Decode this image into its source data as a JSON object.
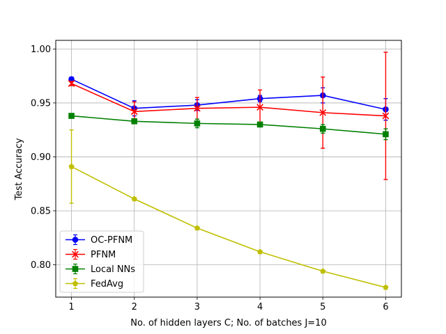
{
  "chart_data": {
    "type": "line",
    "xlabel": "No. of hidden layers C; No. of batches J=10",
    "ylabel": "Test Accuracy",
    "x": [
      1,
      2,
      3,
      4,
      5,
      6
    ],
    "xlim": [
      0.75,
      6.25
    ],
    "ylim": [
      0.77,
      1.008
    ],
    "xticks": [
      1,
      2,
      3,
      4,
      5,
      6
    ],
    "xtick_labels": [
      "1",
      "2",
      "3",
      "4",
      "5",
      "6"
    ],
    "yticks": [
      0.8,
      0.85,
      0.9,
      0.95,
      1.0
    ],
    "ytick_labels": [
      "0.80",
      "0.85",
      "0.90",
      "0.95",
      "1.00"
    ],
    "grid": true,
    "legend_position": "lower-left",
    "series": [
      {
        "name": "OC-PFNM",
        "color": "#0000ff",
        "marker": "circle",
        "values": [
          0.972,
          0.945,
          0.948,
          0.954,
          0.957,
          0.944
        ],
        "errors": [
          0.002,
          0.007,
          0.005,
          0.003,
          0.007,
          0.01
        ]
      },
      {
        "name": "PFNM",
        "color": "#ff0000",
        "marker": "x",
        "values": [
          0.968,
          0.942,
          0.945,
          0.946,
          0.941,
          0.938
        ],
        "errors": [
          0.002,
          0.009,
          0.01,
          0.016,
          0.033,
          0.059
        ]
      },
      {
        "name": "Local NNs",
        "color": "#008000",
        "marker": "square",
        "values": [
          0.938,
          0.933,
          0.931,
          0.93,
          0.926,
          0.921
        ],
        "errors": [
          0.001,
          0.002,
          0.004,
          0.002,
          0.004,
          0.005
        ]
      },
      {
        "name": "FedAvg",
        "color": "#bfbf00",
        "marker": "pentagon",
        "values": [
          0.891,
          0.861,
          0.834,
          0.812,
          0.794,
          0.779
        ],
        "errors": [
          0.034,
          0.001,
          0.001,
          0.001,
          0.001,
          0.001
        ]
      }
    ]
  }
}
